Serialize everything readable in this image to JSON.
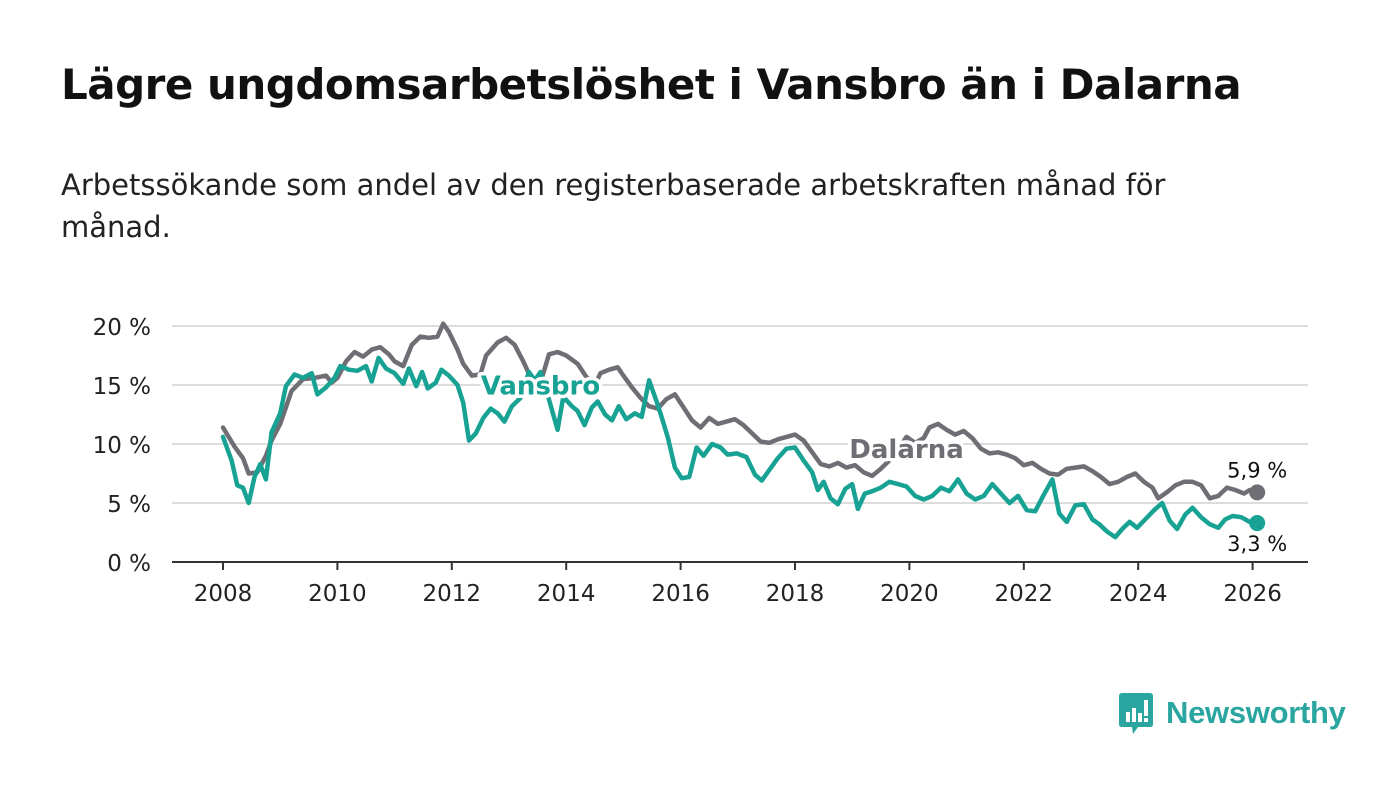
{
  "title": "Lägre ungdomsarbetslöshet i Vansbro än i Dalarna",
  "subtitle": "Arbetssökande som andel av den registerbaserade arbetskraften månad för månad.",
  "brand": {
    "name": "Newsworthy",
    "color": "#2aa5a0",
    "icon": "bar-chart-speech-icon"
  },
  "colors": {
    "vansbro": "#17a294",
    "dalarna": "#6f6e74",
    "grid": "#dcdcdc",
    "axis": "#333333"
  },
  "chart_data": {
    "type": "line",
    "title": "Lägre ungdomsarbetslöshet i Vansbro än i Dalarna",
    "xlabel": "",
    "ylabel": "",
    "xlim": [
      2007.2,
      2027.0
    ],
    "ylim": [
      0,
      20
    ],
    "x_ticks": [
      {
        "value": 2008,
        "label": "2008"
      },
      {
        "value": 2010,
        "label": "2010"
      },
      {
        "value": 2012,
        "label": "2012"
      },
      {
        "value": 2014,
        "label": "2014"
      },
      {
        "value": 2016,
        "label": "2016"
      },
      {
        "value": 2018,
        "label": "2018"
      },
      {
        "value": 2020,
        "label": "2020"
      },
      {
        "value": 2022,
        "label": "2022"
      },
      {
        "value": 2024,
        "label": "2024"
      },
      {
        "value": 2026,
        "label": "2026"
      }
    ],
    "y_ticks": [
      {
        "value": 0,
        "label": "0 %"
      },
      {
        "value": 5,
        "label": "5 %"
      },
      {
        "value": 10,
        "label": "10 %"
      },
      {
        "value": 15,
        "label": "15 %"
      },
      {
        "value": 20,
        "label": "20 %"
      }
    ],
    "grid": true,
    "series": [
      {
        "name": "Dalarna",
        "label": "Dalarna",
        "color": "#6f6e74",
        "label_at": [
          2019.95,
          8.8
        ],
        "end_label": "5,9 %",
        "end_value": 5.9,
        "points": [
          [
            2008.0,
            11.4
          ],
          [
            2008.2,
            9.8
          ],
          [
            2008.35,
            8.8
          ],
          [
            2008.45,
            7.5
          ],
          [
            2008.6,
            7.6
          ],
          [
            2008.75,
            9.0
          ],
          [
            2008.85,
            10.3
          ],
          [
            2009.0,
            11.7
          ],
          [
            2009.2,
            14.5
          ],
          [
            2009.4,
            15.5
          ],
          [
            2009.6,
            15.6
          ],
          [
            2009.8,
            15.8
          ],
          [
            2009.9,
            15.2
          ],
          [
            2010.0,
            15.6
          ],
          [
            2010.15,
            17.0
          ],
          [
            2010.3,
            17.8
          ],
          [
            2010.45,
            17.4
          ],
          [
            2010.6,
            18.0
          ],
          [
            2010.75,
            18.2
          ],
          [
            2010.9,
            17.6
          ],
          [
            2011.0,
            17.0
          ],
          [
            2011.15,
            16.6
          ],
          [
            2011.3,
            18.4
          ],
          [
            2011.45,
            19.1
          ],
          [
            2011.6,
            19.0
          ],
          [
            2011.75,
            19.1
          ],
          [
            2011.85,
            20.2
          ],
          [
            2011.95,
            19.5
          ],
          [
            2012.1,
            18.0
          ],
          [
            2012.2,
            16.8
          ],
          [
            2012.35,
            15.8
          ],
          [
            2012.5,
            15.9
          ],
          [
            2012.6,
            17.5
          ],
          [
            2012.8,
            18.6
          ],
          [
            2012.95,
            19.0
          ],
          [
            2013.1,
            18.4
          ],
          [
            2013.25,
            17.0
          ],
          [
            2013.4,
            15.4
          ],
          [
            2013.55,
            15.2
          ],
          [
            2013.7,
            17.6
          ],
          [
            2013.85,
            17.8
          ],
          [
            2014.0,
            17.5
          ],
          [
            2014.2,
            16.8
          ],
          [
            2014.35,
            15.7
          ],
          [
            2014.5,
            15.0
          ],
          [
            2014.6,
            16.0
          ],
          [
            2014.75,
            16.3
          ],
          [
            2014.9,
            16.5
          ],
          [
            2015.0,
            15.8
          ],
          [
            2015.15,
            14.8
          ],
          [
            2015.3,
            13.9
          ],
          [
            2015.45,
            13.2
          ],
          [
            2015.6,
            13.0
          ],
          [
            2015.75,
            13.8
          ],
          [
            2015.9,
            14.2
          ],
          [
            2016.05,
            13.1
          ],
          [
            2016.2,
            12.0
          ],
          [
            2016.35,
            11.4
          ],
          [
            2016.5,
            12.2
          ],
          [
            2016.65,
            11.7
          ],
          [
            2016.8,
            11.9
          ],
          [
            2016.95,
            12.1
          ],
          [
            2017.1,
            11.6
          ],
          [
            2017.25,
            10.9
          ],
          [
            2017.4,
            10.2
          ],
          [
            2017.55,
            10.1
          ],
          [
            2017.7,
            10.4
          ],
          [
            2017.85,
            10.6
          ],
          [
            2018.0,
            10.8
          ],
          [
            2018.15,
            10.3
          ],
          [
            2018.3,
            9.3
          ],
          [
            2018.45,
            8.3
          ],
          [
            2018.6,
            8.1
          ],
          [
            2018.75,
            8.4
          ],
          [
            2018.9,
            8.0
          ],
          [
            2019.05,
            8.2
          ],
          [
            2019.2,
            7.6
          ],
          [
            2019.35,
            7.3
          ],
          [
            2019.5,
            7.9
          ],
          [
            2019.65,
            8.6
          ],
          [
            2019.8,
            9.5
          ],
          [
            2019.95,
            10.6
          ],
          [
            2020.1,
            10.1
          ],
          [
            2020.25,
            10.5
          ],
          [
            2020.35,
            11.4
          ],
          [
            2020.5,
            11.7
          ],
          [
            2020.65,
            11.2
          ],
          [
            2020.8,
            10.8
          ],
          [
            2020.95,
            11.1
          ],
          [
            2021.1,
            10.5
          ],
          [
            2021.25,
            9.6
          ],
          [
            2021.4,
            9.2
          ],
          [
            2021.55,
            9.3
          ],
          [
            2021.7,
            9.1
          ],
          [
            2021.85,
            8.8
          ],
          [
            2022.0,
            8.2
          ],
          [
            2022.15,
            8.4
          ],
          [
            2022.3,
            7.9
          ],
          [
            2022.45,
            7.5
          ],
          [
            2022.6,
            7.4
          ],
          [
            2022.75,
            7.9
          ],
          [
            2022.9,
            8.0
          ],
          [
            2023.05,
            8.1
          ],
          [
            2023.2,
            7.7
          ],
          [
            2023.35,
            7.2
          ],
          [
            2023.5,
            6.6
          ],
          [
            2023.65,
            6.8
          ],
          [
            2023.8,
            7.2
          ],
          [
            2023.95,
            7.5
          ],
          [
            2024.1,
            6.8
          ],
          [
            2024.25,
            6.3
          ],
          [
            2024.35,
            5.4
          ],
          [
            2024.5,
            5.9
          ],
          [
            2024.65,
            6.5
          ],
          [
            2024.8,
            6.8
          ],
          [
            2024.95,
            6.8
          ],
          [
            2025.1,
            6.5
          ],
          [
            2025.25,
            5.4
          ],
          [
            2025.4,
            5.6
          ],
          [
            2025.55,
            6.3
          ],
          [
            2025.7,
            6.1
          ],
          [
            2025.85,
            5.8
          ],
          [
            2025.95,
            6.1
          ],
          [
            2026.08,
            5.9
          ]
        ]
      },
      {
        "name": "Vansbro",
        "label": "Vansbro",
        "color": "#17a294",
        "label_at": [
          2013.55,
          14.2
        ],
        "end_label": "3,3 %",
        "end_value": 3.3,
        "points": [
          [
            2008.0,
            10.6
          ],
          [
            2008.15,
            8.6
          ],
          [
            2008.25,
            6.5
          ],
          [
            2008.35,
            6.3
          ],
          [
            2008.45,
            5.0
          ],
          [
            2008.55,
            7.2
          ],
          [
            2008.65,
            8.3
          ],
          [
            2008.75,
            7.0
          ],
          [
            2008.85,
            11.0
          ],
          [
            2009.0,
            12.6
          ],
          [
            2009.1,
            14.9
          ],
          [
            2009.25,
            15.9
          ],
          [
            2009.4,
            15.6
          ],
          [
            2009.55,
            16.0
          ],
          [
            2009.65,
            14.2
          ],
          [
            2009.8,
            14.8
          ],
          [
            2009.95,
            15.6
          ],
          [
            2010.05,
            16.6
          ],
          [
            2010.2,
            16.3
          ],
          [
            2010.35,
            16.2
          ],
          [
            2010.5,
            16.6
          ],
          [
            2010.6,
            15.3
          ],
          [
            2010.72,
            17.3
          ],
          [
            2010.85,
            16.4
          ],
          [
            2011.0,
            16.0
          ],
          [
            2011.15,
            15.1
          ],
          [
            2011.25,
            16.4
          ],
          [
            2011.38,
            14.9
          ],
          [
            2011.48,
            16.1
          ],
          [
            2011.58,
            14.7
          ],
          [
            2011.72,
            15.2
          ],
          [
            2011.82,
            16.3
          ],
          [
            2011.95,
            15.8
          ],
          [
            2012.1,
            15.0
          ],
          [
            2012.2,
            13.5
          ],
          [
            2012.3,
            10.3
          ],
          [
            2012.42,
            10.9
          ],
          [
            2012.55,
            12.2
          ],
          [
            2012.68,
            13.0
          ],
          [
            2012.8,
            12.6
          ],
          [
            2012.92,
            11.9
          ],
          [
            2013.05,
            13.2
          ],
          [
            2013.2,
            13.9
          ],
          [
            2013.35,
            16.1
          ],
          [
            2013.45,
            15.4
          ],
          [
            2013.55,
            16.1
          ],
          [
            2013.65,
            14.6
          ],
          [
            2013.75,
            12.9
          ],
          [
            2013.85,
            11.2
          ],
          [
            2013.95,
            14.0
          ],
          [
            2014.1,
            13.2
          ],
          [
            2014.2,
            12.8
          ],
          [
            2014.32,
            11.6
          ],
          [
            2014.45,
            13.1
          ],
          [
            2014.55,
            13.6
          ],
          [
            2014.68,
            12.5
          ],
          [
            2014.8,
            12.0
          ],
          [
            2014.92,
            13.2
          ],
          [
            2015.05,
            12.1
          ],
          [
            2015.2,
            12.6
          ],
          [
            2015.32,
            12.3
          ],
          [
            2015.45,
            15.4
          ],
          [
            2015.58,
            13.6
          ],
          [
            2015.68,
            12.1
          ],
          [
            2015.78,
            10.5
          ],
          [
            2015.9,
            8.0
          ],
          [
            2016.02,
            7.1
          ],
          [
            2016.15,
            7.2
          ],
          [
            2016.28,
            9.7
          ],
          [
            2016.4,
            9.0
          ],
          [
            2016.55,
            10.0
          ],
          [
            2016.7,
            9.7
          ],
          [
            2016.82,
            9.1
          ],
          [
            2016.98,
            9.2
          ],
          [
            2017.15,
            8.9
          ],
          [
            2017.3,
            7.4
          ],
          [
            2017.42,
            6.9
          ],
          [
            2017.55,
            7.8
          ],
          [
            2017.7,
            8.8
          ],
          [
            2017.85,
            9.6
          ],
          [
            2018.0,
            9.7
          ],
          [
            2018.15,
            8.6
          ],
          [
            2018.3,
            7.6
          ],
          [
            2018.4,
            6.1
          ],
          [
            2018.5,
            6.8
          ],
          [
            2018.62,
            5.4
          ],
          [
            2018.75,
            4.9
          ],
          [
            2018.88,
            6.2
          ],
          [
            2019.0,
            6.6
          ],
          [
            2019.1,
            4.5
          ],
          [
            2019.22,
            5.8
          ],
          [
            2019.35,
            6.0
          ],
          [
            2019.5,
            6.3
          ],
          [
            2019.65,
            6.8
          ],
          [
            2019.8,
            6.6
          ],
          [
            2019.95,
            6.4
          ],
          [
            2020.1,
            5.6
          ],
          [
            2020.25,
            5.3
          ],
          [
            2020.4,
            5.6
          ],
          [
            2020.55,
            6.3
          ],
          [
            2020.7,
            6.0
          ],
          [
            2020.85,
            7.0
          ],
          [
            2021.0,
            5.8
          ],
          [
            2021.15,
            5.3
          ],
          [
            2021.3,
            5.6
          ],
          [
            2021.45,
            6.6
          ],
          [
            2021.6,
            5.8
          ],
          [
            2021.75,
            5.0
          ],
          [
            2021.9,
            5.6
          ],
          [
            2022.05,
            4.4
          ],
          [
            2022.2,
            4.3
          ],
          [
            2022.35,
            5.7
          ],
          [
            2022.5,
            7.0
          ],
          [
            2022.62,
            4.1
          ],
          [
            2022.75,
            3.4
          ],
          [
            2022.9,
            4.8
          ],
          [
            2023.05,
            4.9
          ],
          [
            2023.2,
            3.6
          ],
          [
            2023.32,
            3.2
          ],
          [
            2023.45,
            2.6
          ],
          [
            2023.6,
            2.1
          ],
          [
            2023.72,
            2.8
          ],
          [
            2023.85,
            3.4
          ],
          [
            2023.98,
            2.9
          ],
          [
            2024.12,
            3.6
          ],
          [
            2024.28,
            4.4
          ],
          [
            2024.42,
            5.0
          ],
          [
            2024.55,
            3.5
          ],
          [
            2024.68,
            2.8
          ],
          [
            2024.82,
            4.0
          ],
          [
            2024.95,
            4.6
          ],
          [
            2025.1,
            3.8
          ],
          [
            2025.25,
            3.2
          ],
          [
            2025.4,
            2.9
          ],
          [
            2025.52,
            3.6
          ],
          [
            2025.65,
            3.9
          ],
          [
            2025.8,
            3.8
          ],
          [
            2025.95,
            3.4
          ],
          [
            2026.08,
            3.3
          ]
        ]
      }
    ]
  }
}
